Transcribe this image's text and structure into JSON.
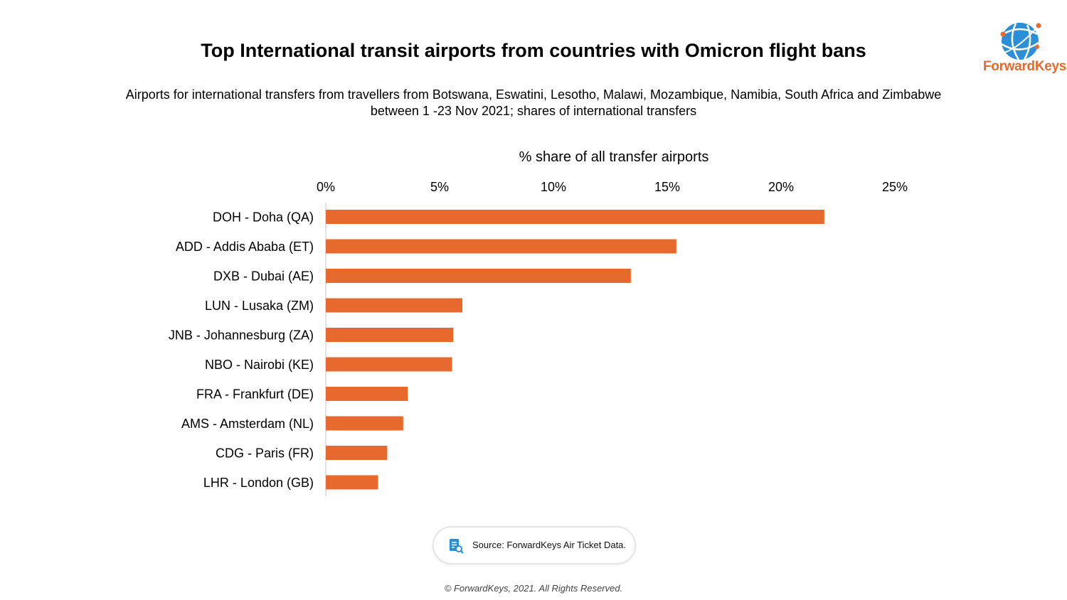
{
  "header": {
    "title": "Top International transit airports from countries with Omicron flight bans",
    "subtitle_line1": "Airports for international transfers from travellers from Botswana, Eswatini, Lesotho, Malawi, Mozambique, Namibia, South Africa and Zimbabwe",
    "subtitle_line2": "between 1 -23 Nov 2021; shares of international transfers"
  },
  "logo": {
    "text": "ForwardKeys",
    "icon": "globe-icon",
    "color": "#e8692d",
    "icon_color": "#2a8fd6"
  },
  "chart_data": {
    "type": "bar",
    "orientation": "horizontal",
    "xlabel": "% share of all transfer airports",
    "ylabel": "",
    "xlim": [
      0,
      25
    ],
    "xticks": [
      0,
      5,
      10,
      15,
      20,
      25
    ],
    "tick_labels": [
      "0%",
      "5%",
      "10%",
      "15%",
      "20%",
      "25%"
    ],
    "axis_position": "top",
    "grid": false,
    "categories": [
      "DOH - Doha (QA)",
      "ADD - Addis Ababa (ET)",
      "DXB - Dubai (AE)",
      "LUN - Lusaka (ZM)",
      "JNB - Johannesburg (ZA)",
      "NBO - Nairobi (KE)",
      "FRA - Frankfurt (DE)",
      "AMS - Amsterdam (NL)",
      "CDG - Paris (FR)",
      "LHR - London (GB)"
    ],
    "values": [
      21.9,
      15.4,
      13.4,
      6.0,
      5.6,
      5.55,
      3.6,
      3.4,
      2.7,
      2.3
    ],
    "bar_color": "#e8692d"
  },
  "source": {
    "text": "Source: ForwardKeys Air Ticket Data.",
    "icon": "document-search-icon"
  },
  "footer": {
    "copyright": "© ForwardKeys, 2021. All Rights Reserved."
  }
}
